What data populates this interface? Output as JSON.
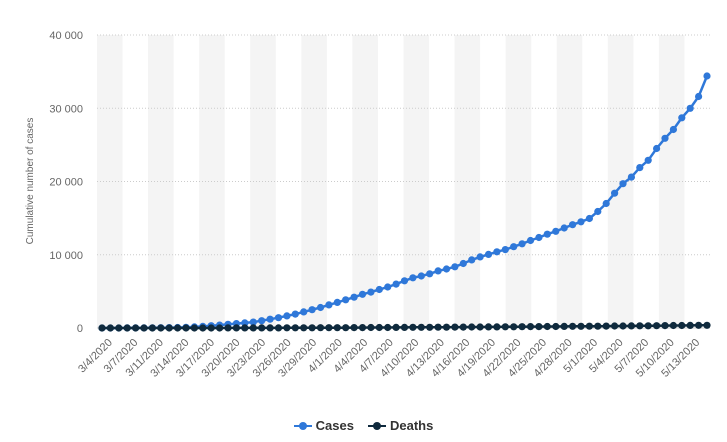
{
  "colors": {
    "cases": "#2f78d9",
    "deaths": "#0f2a3d",
    "band": "#f4f4f4",
    "grid": "#cccccc",
    "axis": "#cccccc"
  },
  "chart_data": {
    "type": "line",
    "ylabel": "Cumulative number of cases",
    "xlabel": "",
    "ylim": [
      0,
      40000
    ],
    "yticks": [
      0,
      10000,
      20000,
      30000,
      40000
    ],
    "ytick_labels": [
      "0",
      "10 000",
      "20 000",
      "30 000",
      "40 000"
    ],
    "x_tick_labels": [
      "3/4/2020",
      "3/7/2020",
      "3/11/2020",
      "3/14/2020",
      "3/17/2020",
      "3/20/2020",
      "3/23/2020",
      "3/26/2020",
      "3/29/2020",
      "4/1/2020",
      "4/4/2020",
      "4/7/2020",
      "4/10/2020",
      "4/13/2020",
      "4/16/2020",
      "4/19/2020",
      "4/22/2020",
      "4/25/2020",
      "4/28/2020",
      "5/1/2020",
      "5/4/2020",
      "5/7/2020",
      "5/10/2020",
      "5/13/2020"
    ],
    "grid": true,
    "legend_position": "bottom-center",
    "series": [
      {
        "name": "Cases",
        "values": [
          2,
          4,
          6,
          9,
          13,
          18,
          25,
          35,
          48,
          70,
          100,
          150,
          220,
          310,
          400,
          500,
          600,
          700,
          800,
          1000,
          1200,
          1400,
          1650,
          1900,
          2200,
          2500,
          2800,
          3150,
          3500,
          3850,
          4200,
          4600,
          4900,
          5250,
          5600,
          6000,
          6450,
          6850,
          7100,
          7400,
          7800,
          8050,
          8350,
          8800,
          9300,
          9700,
          10050,
          10400,
          10700,
          11100,
          11500,
          11950,
          12350,
          12800,
          13200,
          13650,
          14100,
          14500,
          14950,
          15900,
          17000,
          18400,
          19700,
          20600,
          21900,
          22900,
          24500,
          25900,
          27100,
          28700,
          30000,
          31600,
          34400
        ]
      },
      {
        "name": "Deaths",
        "values": [
          0,
          0,
          0,
          0,
          0,
          0,
          0,
          0,
          1,
          1,
          2,
          3,
          4,
          5,
          6,
          7,
          8,
          10,
          12,
          14,
          16,
          19,
          22,
          25,
          28,
          31,
          35,
          39,
          43,
          47,
          52,
          57,
          62,
          67,
          72,
          78,
          84,
          90,
          96,
          102,
          108,
          114,
          120,
          127,
          134,
          141,
          148,
          155,
          162,
          170,
          178,
          186,
          194,
          202,
          210,
          218,
          226,
          234,
          242,
          250,
          259,
          268,
          277,
          286,
          295,
          305,
          315,
          325,
          335,
          345,
          355,
          365,
          375
        ]
      }
    ]
  }
}
